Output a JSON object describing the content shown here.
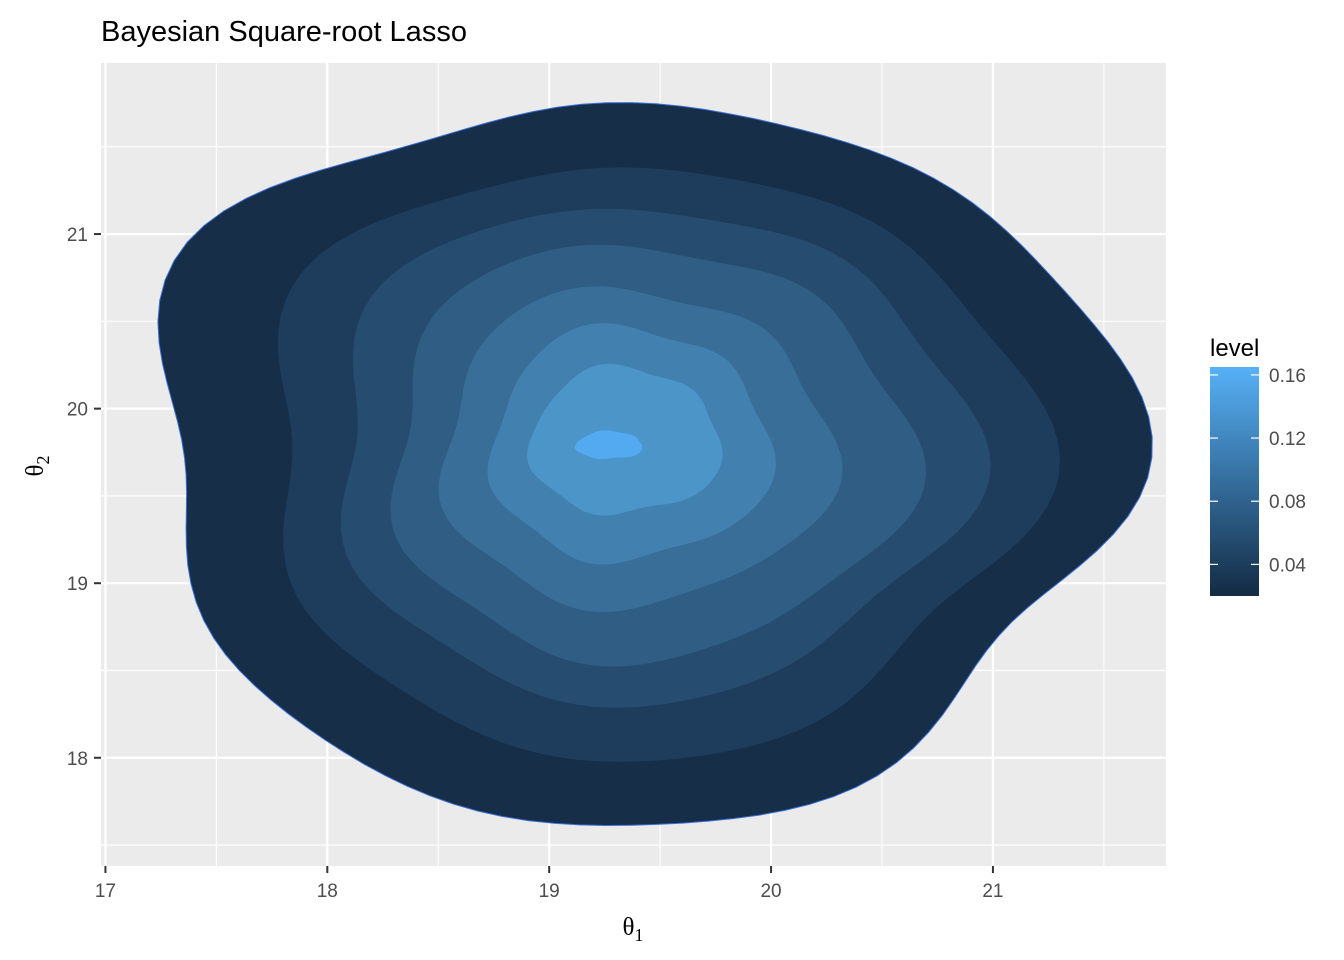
{
  "chart_data": {
    "type": "filled-contour",
    "title": "Bayesian Square-root Lasso",
    "xlabel": {
      "symbol": "θ",
      "subscript": "1"
    },
    "ylabel": {
      "symbol": "θ",
      "subscript": "2"
    },
    "xlim": [
      16.98,
      21.78
    ],
    "ylim": [
      17.38,
      21.98
    ],
    "x_ticks": [
      17,
      18,
      19,
      20,
      21
    ],
    "x_tick_labels": [
      "17",
      "18",
      "19",
      "20",
      "21"
    ],
    "y_ticks": [
      18,
      19,
      20,
      21
    ],
    "y_tick_labels": [
      "18",
      "19",
      "20",
      "21"
    ],
    "grid": true,
    "legend": {
      "title": "level",
      "position": "right",
      "range": [
        0.02,
        0.165
      ],
      "ticks": [
        0.04,
        0.08,
        0.12,
        0.16
      ],
      "tick_labels": [
        "0.04",
        "0.08",
        "0.12",
        "0.16"
      ],
      "color_low": "#132B43",
      "color_high": "#56B1F7"
    },
    "levels": [
      {
        "level": 0.02,
        "color": "#162e48",
        "center": [
          19.37,
          19.72
        ],
        "rx": 2.18,
        "ry": 2.07
      },
      {
        "level": 0.04,
        "color": "#1e3d5c",
        "center": [
          19.42,
          19.72
        ],
        "rx": 1.73,
        "ry": 1.7
      },
      {
        "level": 0.06,
        "color": "#264d6f",
        "center": [
          19.43,
          19.75
        ],
        "rx": 1.43,
        "ry": 1.42
      },
      {
        "level": 0.08,
        "color": "#2f5d84",
        "center": [
          19.43,
          19.75
        ],
        "rx": 1.17,
        "ry": 1.19
      },
      {
        "level": 0.1,
        "color": "#396e99",
        "center": [
          19.38,
          19.77
        ],
        "rx": 0.88,
        "ry": 0.91
      },
      {
        "level": 0.12,
        "color": "#4280b0",
        "center": [
          19.36,
          19.79
        ],
        "rx": 0.63,
        "ry": 0.67
      },
      {
        "level": 0.14,
        "color": "#4b95c9",
        "center": [
          19.34,
          19.81
        ],
        "rx": 0.43,
        "ry": 0.42
      },
      {
        "level": 0.16,
        "color": "#54aaf0",
        "center": [
          19.27,
          19.79
        ],
        "rx": 0.15,
        "ry": 0.08
      }
    ]
  }
}
